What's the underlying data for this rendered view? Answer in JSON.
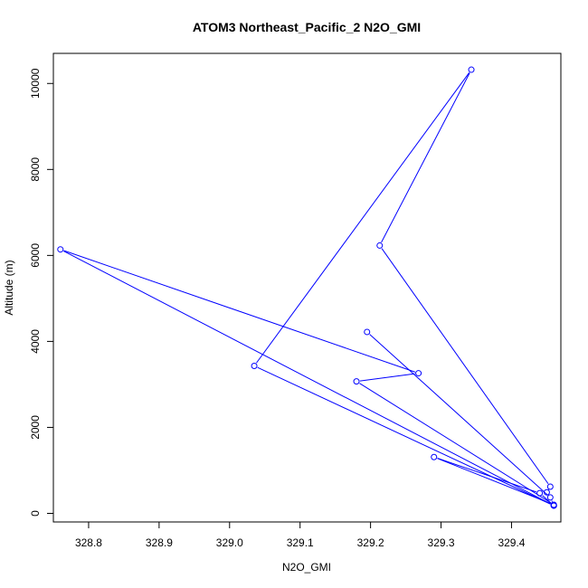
{
  "chart_data": {
    "type": "line",
    "title": "ATOM3 Northeast_Pacific_2 N2O_GMI",
    "xlabel": "N2O_GMI",
    "ylabel": "Altitude (m)",
    "xlim": [
      328.75,
      329.47
    ],
    "ylim": [
      -200,
      10700
    ],
    "x_ticks": [
      "328.8",
      "328.9",
      "329.0",
      "329.1",
      "329.2",
      "329.3",
      "329.4"
    ],
    "y_ticks": [
      "0",
      "2000",
      "4000",
      "6000",
      "8000",
      "10000"
    ],
    "grid": false,
    "legend": "none",
    "color": "#0000ff",
    "series": [
      {
        "points": [
          {
            "x": 329.195,
            "y": 4220
          },
          {
            "x": 329.455,
            "y": 370
          },
          {
            "x": 329.46,
            "y": 190
          },
          {
            "x": 329.46,
            "y": 180
          },
          {
            "x": 329.44,
            "y": 470
          },
          {
            "x": 329.29,
            "y": 1310
          },
          {
            "x": 329.46,
            "y": 200
          },
          {
            "x": 329.18,
            "y": 3070
          },
          {
            "x": 329.268,
            "y": 3260
          },
          {
            "x": 328.76,
            "y": 6140
          },
          {
            "x": 329.46,
            "y": 180
          },
          {
            "x": 329.035,
            "y": 3430
          },
          {
            "x": 329.343,
            "y": 10320
          },
          {
            "x": 329.213,
            "y": 6230
          },
          {
            "x": 329.455,
            "y": 620
          },
          {
            "x": 329.45,
            "y": 490
          }
        ]
      }
    ]
  }
}
